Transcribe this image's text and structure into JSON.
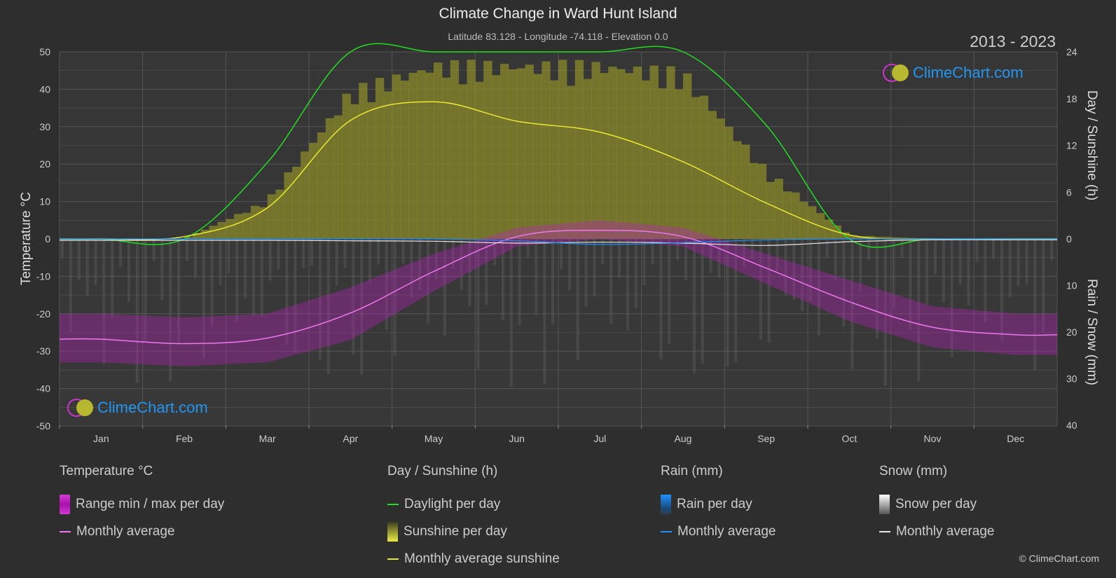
{
  "header": {
    "title": "Climate Change in Ward Hunt Island",
    "subtitle": "Latitude 83.128 - Longitude -74.118 - Elevation 0.0",
    "years": "2013 - 2023"
  },
  "watermark": {
    "brand": "ClimeChart.com"
  },
  "copyright": "© ClimeChart.com",
  "legend": {
    "temperature": {
      "title": "Temperature °C",
      "range_label": "Range min / max per day",
      "avg_label": "Monthly average"
    },
    "sunshine": {
      "title": "Day / Sunshine (h)",
      "daylight_label": "Daylight per day",
      "sunshine_label": "Sunshine per day",
      "avg_label": "Monthly average sunshine"
    },
    "rain": {
      "title": "Rain (mm)",
      "rain_label": "Rain per day",
      "avg_label": "Monthly average"
    },
    "snow": {
      "title": "Snow (mm)",
      "snow_label": "Snow per day",
      "avg_label": "Monthly average"
    }
  },
  "colors": {
    "background": "#2e2e2e",
    "grid": "#555555",
    "temperature_avg": "#ee77ee",
    "temperature_range": "#c020c0",
    "daylight": "#22dd22",
    "sunshine_avg": "#e8e832",
    "sunshine_fill": "#8a8a2a",
    "rain": "#1e90ff",
    "snow": "#e8e8e8",
    "brand": "#2196f3"
  },
  "chart_data": {
    "type": "area",
    "categories": [
      "Jan",
      "Feb",
      "Mar",
      "Apr",
      "May",
      "Jun",
      "Jul",
      "Aug",
      "Sep",
      "Oct",
      "Nov",
      "Dec"
    ],
    "axes": {
      "left": {
        "label": "Temperature °C",
        "min": -50,
        "max": 50,
        "ticks": [
          50,
          40,
          30,
          20,
          10,
          0,
          -10,
          -20,
          -30,
          -40,
          -50
        ]
      },
      "right_top": {
        "label": "Day / Sunshine (h)",
        "min": 0,
        "max": 24,
        "ticks": [
          24,
          18,
          12,
          6,
          0
        ]
      },
      "right_bottom": {
        "label": "Rain / Snow (mm)",
        "min": 0,
        "max": 40,
        "ticks": [
          0,
          10,
          20,
          30,
          40
        ]
      }
    },
    "grid": true,
    "series": [
      {
        "name": "Monthly average",
        "group": "temperature",
        "unit": "°C",
        "values": [
          -26.8,
          -28.0,
          -26.5,
          -19.8,
          -8.7,
          0.6,
          2.3,
          0.6,
          -7.8,
          -16.8,
          -23.6,
          -25.6
        ]
      },
      {
        "name": "Range min / max per day",
        "group": "temperature",
        "unit": "°C",
        "min": [
          -33,
          -34,
          -33,
          -27,
          -14,
          -2,
          0,
          -2,
          -12,
          -22,
          -29,
          -31
        ],
        "max": [
          -20,
          -21,
          -20,
          -13,
          -4,
          3,
          5,
          3,
          -4,
          -11,
          -18,
          -20
        ]
      },
      {
        "name": "Daylight per day",
        "group": "sunshine",
        "unit": "h",
        "values": [
          0,
          0,
          9.8,
          24,
          24,
          24,
          24,
          24,
          14.6,
          0,
          0,
          0
        ]
      },
      {
        "name": "Monthly average sunshine",
        "group": "sunshine",
        "unit": "h",
        "values": [
          0,
          0.3,
          4.0,
          15.2,
          17.6,
          15.1,
          13.7,
          9.9,
          4.6,
          0.5,
          0,
          0
        ]
      },
      {
        "name": "Sunshine per day",
        "group": "sunshine",
        "unit": "h",
        "values": [
          0,
          0,
          5.0,
          19.5,
          23.0,
          23.0,
          23.0,
          22.0,
          9.0,
          0.5,
          0,
          0
        ]
      },
      {
        "name": "Monthly average",
        "group": "rain",
        "unit": "mm",
        "values": [
          0,
          0,
          0,
          0,
          0,
          0.4,
          1.2,
          0.8,
          0.2,
          0,
          0,
          0
        ]
      },
      {
        "name": "Monthly average",
        "group": "snow",
        "unit": "mm",
        "values": [
          0.3,
          0.3,
          0.3,
          0.4,
          0.5,
          0.9,
          0.7,
          0.9,
          1.4,
          0.6,
          0.2,
          0.2
        ]
      }
    ]
  }
}
